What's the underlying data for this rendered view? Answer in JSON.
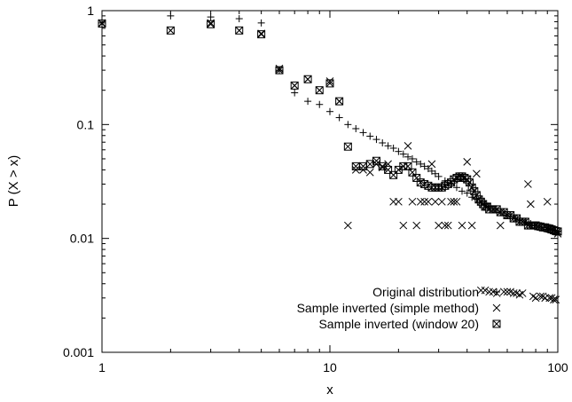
{
  "chart_data": {
    "type": "scatter",
    "xlabel": "x",
    "ylabel": "P (X > x)",
    "xscale": "log",
    "yscale": "log",
    "xlim": [
      1,
      100
    ],
    "ylim": [
      0.001,
      1
    ],
    "grid": false,
    "legend_position": "bottom-right",
    "x_ticks": [
      {
        "value": 1,
        "label": "1"
      },
      {
        "value": 10,
        "label": "10"
      },
      {
        "value": 100,
        "label": "100"
      }
    ],
    "y_ticks": [
      {
        "value": 1,
        "label": "1"
      },
      {
        "value": 0.1,
        "label": "0.1"
      },
      {
        "value": 0.01,
        "label": "0.01"
      },
      {
        "value": 0.001,
        "label": "0.001"
      }
    ],
    "series": [
      {
        "name": "Original distribution",
        "marker": "plus",
        "points": [
          [
            1,
            0.78
          ],
          [
            2,
            0.9
          ],
          [
            3,
            0.88
          ],
          [
            4,
            0.85
          ],
          [
            5,
            0.78
          ],
          [
            6,
            0.3
          ],
          [
            7,
            0.19
          ],
          [
            8,
            0.16
          ],
          [
            9,
            0.15
          ],
          [
            10,
            0.13
          ],
          [
            11,
            0.115
          ],
          [
            12,
            0.1
          ],
          [
            13,
            0.092
          ],
          [
            14,
            0.085
          ],
          [
            15,
            0.079
          ],
          [
            16,
            0.074
          ],
          [
            17,
            0.069
          ],
          [
            18,
            0.065
          ],
          [
            19,
            0.062
          ],
          [
            20,
            0.058
          ],
          [
            21,
            0.055
          ],
          [
            22,
            0.052
          ],
          [
            23,
            0.05
          ],
          [
            24,
            0.047
          ],
          [
            25,
            0.045
          ],
          [
            26,
            0.043
          ],
          [
            27,
            0.041
          ],
          [
            28,
            0.039
          ],
          [
            29,
            0.037
          ],
          [
            30,
            0.035
          ],
          [
            32,
            0.032
          ],
          [
            34,
            0.03
          ],
          [
            36,
            0.028
          ],
          [
            38,
            0.026
          ],
          [
            40,
            0.025
          ],
          [
            42,
            0.023
          ],
          [
            44,
            0.022
          ],
          [
            46,
            0.021
          ],
          [
            48,
            0.02
          ],
          [
            50,
            0.019
          ],
          [
            53,
            0.018
          ],
          [
            56,
            0.017
          ],
          [
            59,
            0.016
          ],
          [
            62,
            0.0155
          ],
          [
            65,
            0.015
          ],
          [
            68,
            0.0145
          ],
          [
            72,
            0.014
          ],
          [
            76,
            0.0135
          ],
          [
            80,
            0.013
          ],
          [
            85,
            0.0125
          ],
          [
            90,
            0.012
          ],
          [
            95,
            0.0118
          ],
          [
            100,
            0.0115
          ]
        ]
      },
      {
        "name": "Sample inverted (simple method)",
        "marker": "cross",
        "points": [
          [
            1,
            0.78
          ],
          [
            2,
            0.67
          ],
          [
            3,
            0.78
          ],
          [
            4,
            0.67
          ],
          [
            5,
            0.63
          ],
          [
            6,
            0.31
          ],
          [
            7,
            0.22
          ],
          [
            8,
            0.25
          ],
          [
            9,
            0.2
          ],
          [
            10,
            0.24
          ],
          [
            11,
            0.16
          ],
          [
            12,
            0.013
          ],
          [
            13,
            0.04
          ],
          [
            14,
            0.04
          ],
          [
            15,
            0.038
          ],
          [
            16,
            0.045
          ],
          [
            17,
            0.042
          ],
          [
            18,
            0.045
          ],
          [
            19,
            0.021
          ],
          [
            20,
            0.021
          ],
          [
            21,
            0.013
          ],
          [
            22,
            0.065
          ],
          [
            23,
            0.021
          ],
          [
            24,
            0.013
          ],
          [
            25,
            0.021
          ],
          [
            26,
            0.021
          ],
          [
            27,
            0.021
          ],
          [
            28,
            0.045
          ],
          [
            29,
            0.021
          ],
          [
            30,
            0.013
          ],
          [
            31,
            0.021
          ],
          [
            32,
            0.013
          ],
          [
            33,
            0.013
          ],
          [
            34,
            0.021
          ],
          [
            35,
            0.021
          ],
          [
            36,
            0.021
          ],
          [
            38,
            0.013
          ],
          [
            40,
            0.047
          ],
          [
            42,
            0.013
          ],
          [
            44,
            0.037
          ],
          [
            46,
            0.0035
          ],
          [
            48,
            0.0035
          ],
          [
            50,
            0.0034
          ],
          [
            52,
            0.0034
          ],
          [
            54,
            0.0033
          ],
          [
            56,
            0.013
          ],
          [
            58,
            0.0034
          ],
          [
            60,
            0.0034
          ],
          [
            62,
            0.0034
          ],
          [
            64,
            0.0033
          ],
          [
            66,
            0.0033
          ],
          [
            68,
            0.0032
          ],
          [
            70,
            0.0033
          ],
          [
            74,
            0.03
          ],
          [
            76,
            0.02
          ],
          [
            78,
            0.0031
          ],
          [
            80,
            0.003
          ],
          [
            84,
            0.0031
          ],
          [
            86,
            0.0031
          ],
          [
            88,
            0.003
          ],
          [
            90,
            0.021
          ],
          [
            92,
            0.003
          ],
          [
            94,
            0.003
          ],
          [
            96,
            0.0029
          ],
          [
            98,
            0.0029
          ],
          [
            100,
            0.011
          ]
        ]
      },
      {
        "name": "Sample inverted (window 20)",
        "marker": "boxcross",
        "points": [
          [
            1,
            0.77
          ],
          [
            2,
            0.67
          ],
          [
            3,
            0.76
          ],
          [
            4,
            0.67
          ],
          [
            5,
            0.62
          ],
          [
            6,
            0.3
          ],
          [
            7,
            0.22
          ],
          [
            8,
            0.25
          ],
          [
            9,
            0.2
          ],
          [
            10,
            0.23
          ],
          [
            11,
            0.16
          ],
          [
            12,
            0.064
          ],
          [
            13,
            0.043
          ],
          [
            14,
            0.043
          ],
          [
            15,
            0.045
          ],
          [
            16,
            0.048
          ],
          [
            17,
            0.043
          ],
          [
            18,
            0.04
          ],
          [
            19,
            0.036
          ],
          [
            20,
            0.04
          ],
          [
            21,
            0.043
          ],
          [
            22,
            0.043
          ],
          [
            23,
            0.038
          ],
          [
            24,
            0.034
          ],
          [
            25,
            0.031
          ],
          [
            26,
            0.03
          ],
          [
            27,
            0.029
          ],
          [
            28,
            0.028
          ],
          [
            29,
            0.028
          ],
          [
            30,
            0.028
          ],
          [
            31,
            0.028
          ],
          [
            32,
            0.029
          ],
          [
            33,
            0.03
          ],
          [
            34,
            0.031
          ],
          [
            35,
            0.033
          ],
          [
            36,
            0.034
          ],
          [
            37,
            0.035
          ],
          [
            38,
            0.035
          ],
          [
            39,
            0.034
          ],
          [
            40,
            0.033
          ],
          [
            41,
            0.031
          ],
          [
            42,
            0.028
          ],
          [
            43,
            0.026
          ],
          [
            44,
            0.024
          ],
          [
            45,
            0.022
          ],
          [
            46,
            0.021
          ],
          [
            47,
            0.02
          ],
          [
            48,
            0.019
          ],
          [
            49,
            0.019
          ],
          [
            50,
            0.018
          ],
          [
            52,
            0.018
          ],
          [
            54,
            0.018
          ],
          [
            56,
            0.017
          ],
          [
            58,
            0.017
          ],
          [
            60,
            0.016
          ],
          [
            62,
            0.016
          ],
          [
            64,
            0.015
          ],
          [
            66,
            0.015
          ],
          [
            68,
            0.014
          ],
          [
            70,
            0.014
          ],
          [
            72,
            0.014
          ],
          [
            74,
            0.013
          ],
          [
            76,
            0.013
          ],
          [
            78,
            0.013
          ],
          [
            80,
            0.013
          ],
          [
            82,
            0.0128
          ],
          [
            84,
            0.0127
          ],
          [
            86,
            0.0125
          ],
          [
            88,
            0.0125
          ],
          [
            90,
            0.0123
          ],
          [
            92,
            0.0122
          ],
          [
            94,
            0.012
          ],
          [
            96,
            0.0118
          ],
          [
            98,
            0.0116
          ],
          [
            100,
            0.0115
          ]
        ]
      }
    ]
  }
}
